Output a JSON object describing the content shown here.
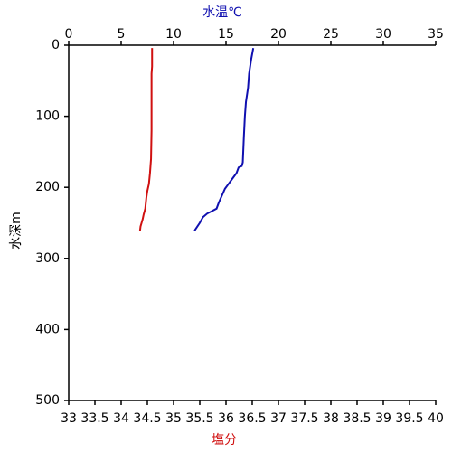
{
  "chart_data": {
    "type": "line",
    "x2label": "水温℃",
    "xlabel": "塩分",
    "ylabel": "水深m",
    "xlim": [
      33,
      40
    ],
    "xticks": [
      33,
      33.5,
      34,
      34.5,
      35,
      35.5,
      36,
      36.5,
      37,
      37.5,
      38,
      38.5,
      39,
      39.5,
      40
    ],
    "x2lim": [
      0,
      35
    ],
    "x2ticks": [
      0,
      5,
      10,
      15,
      20,
      25,
      30,
      35
    ],
    "ylim": [
      0,
      500
    ],
    "yticks": [
      0,
      100,
      200,
      300,
      400,
      500
    ],
    "y_inverted": true,
    "series": [
      {
        "color": "#d01010",
        "axis": "x",
        "values": [
          34.59,
          34.59,
          34.58,
          34.58,
          34.58,
          34.57,
          34.56,
          34.55,
          34.53,
          34.5,
          34.48,
          34.46,
          34.43,
          34.41,
          34.39,
          34.37,
          34.36
        ],
        "depth": [
          4,
          30,
          40,
          80,
          120,
          160,
          170,
          180,
          195,
          205,
          215,
          230,
          238,
          245,
          250,
          255,
          261
        ]
      },
      {
        "color": "#1010b0",
        "axis": "x2",
        "values": [
          17.6,
          17.4,
          17.2,
          17.1,
          16.9,
          16.8,
          16.7,
          16.6,
          16.5,
          16.2,
          16.0,
          15.6,
          15.2,
          14.9,
          14.6,
          14.3,
          14.1,
          13.6,
          13.2,
          12.8,
          12.5,
          12.0
        ],
        "depth": [
          4,
          20,
          40,
          60,
          80,
          100,
          130,
          165,
          170,
          172,
          180,
          188,
          196,
          202,
          212,
          222,
          230,
          234,
          237,
          242,
          250,
          261
        ]
      }
    ]
  }
}
